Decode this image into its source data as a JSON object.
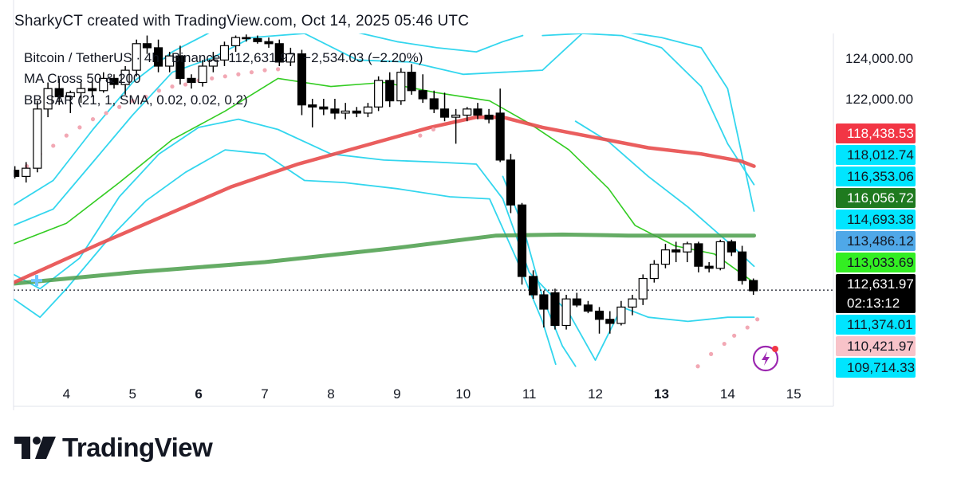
{
  "header": {
    "attribution": "SharkyCT created with TradingView.com, Oct 14, 2025 05:46 UTC"
  },
  "legend": {
    "symbol": "Bitcoin / TetherUS · 4h · Binance",
    "last_close": "112,631.97",
    "change": "−2,534.03 (−2.20%)",
    "ma_indicator": "MA Cross 50 & 200",
    "bb_indicator": "BB SAR (21, 1, SMA, 0.02, 0.02, 0.2)"
  },
  "logo": {
    "text": "TradingView"
  },
  "colors": {
    "ma50": "#e84c4c",
    "ma200": "#4a9e4a",
    "bb_outer": "#33d6ee",
    "bb_middle": "#33cc22",
    "sar": "#f2a8b4",
    "candle_up_fill": "#ffffff",
    "candle_down_fill": "#000000",
    "candle_border": "#000000"
  },
  "chart_data": {
    "type": "candlestick",
    "timeframe": "4h",
    "x_domain": [
      3.2,
      15.6
    ],
    "y_domain": [
      108500,
      125200
    ],
    "y_ticks": [
      {
        "value": 124000,
        "label": "124,000.00"
      },
      {
        "value": 122000,
        "label": "122,000.00"
      }
    ],
    "x_ticks": [
      {
        "value": 4,
        "label": "4",
        "bold": false
      },
      {
        "value": 5,
        "label": "5",
        "bold": false
      },
      {
        "value": 6,
        "label": "6",
        "bold": true
      },
      {
        "value": 7,
        "label": "7",
        "bold": false
      },
      {
        "value": 8,
        "label": "8",
        "bold": false
      },
      {
        "value": 9,
        "label": "9",
        "bold": false
      },
      {
        "value": 10,
        "label": "10",
        "bold": false
      },
      {
        "value": 11,
        "label": "11",
        "bold": false
      },
      {
        "value": 12,
        "label": "12",
        "bold": false
      },
      {
        "value": 13,
        "label": "13",
        "bold": true
      },
      {
        "value": 14,
        "label": "14",
        "bold": false
      },
      {
        "value": 15,
        "label": "15",
        "bold": false
      }
    ],
    "price_tags": [
      {
        "label": "118,438.53",
        "value": 118438.53,
        "bg": "#f23645",
        "color": "#ffffff"
      },
      {
        "label": "118,012.74",
        "value": 118012.74,
        "bg": "#00e5ff",
        "color": "#131722"
      },
      {
        "label": "116,353.06",
        "value": 116353.06,
        "bg": "#00e5ff",
        "color": "#131722"
      },
      {
        "label": "116,056.72",
        "value": 116056.72,
        "bg": "#1f7a1f",
        "color": "#ffffff"
      },
      {
        "label": "114,693.38",
        "value": 114693.38,
        "bg": "#00e5ff",
        "color": "#131722"
      },
      {
        "label": "113,486.12",
        "value": 113486.12,
        "bg": "#4fa8e8",
        "color": "#131722"
      },
      {
        "label": "113,033.69",
        "value": 113033.69,
        "bg": "#33ee22",
        "color": "#131722"
      },
      {
        "label": "112,631.97",
        "value": 112631.97,
        "bg": "#000000",
        "color": "#ffffff",
        "sub": "02:13:12"
      },
      {
        "label": "111,374.01",
        "value": 111374.01,
        "bg": "#00e5ff",
        "color": "#131722"
      },
      {
        "label": "110,421.97",
        "value": 110421.97,
        "bg": "#f8c3c9",
        "color": "#131722"
      },
      {
        "label": "109,714.33",
        "value": 109714.33,
        "bg": "#00e5ff",
        "color": "#131722"
      }
    ],
    "last_price": 112631.97,
    "candles": [
      {
        "t": 3.22,
        "o": 118500,
        "h": 118700,
        "l": 118100,
        "c": 118200
      },
      {
        "t": 3.39,
        "o": 118200,
        "h": 118900,
        "l": 117900,
        "c": 118600
      },
      {
        "t": 3.56,
        "o": 118600,
        "h": 121900,
        "l": 118400,
        "c": 121500
      },
      {
        "t": 3.72,
        "o": 121500,
        "h": 122800,
        "l": 121100,
        "c": 122500
      },
      {
        "t": 3.89,
        "o": 122500,
        "h": 123000,
        "l": 121700,
        "c": 122100
      },
      {
        "t": 4.06,
        "o": 122100,
        "h": 122400,
        "l": 121300,
        "c": 122300
      },
      {
        "t": 4.22,
        "o": 122300,
        "h": 122800,
        "l": 121800,
        "c": 122500
      },
      {
        "t": 4.39,
        "o": 122500,
        "h": 122900,
        "l": 122100,
        "c": 122400
      },
      {
        "t": 4.56,
        "o": 122400,
        "h": 123300,
        "l": 122300,
        "c": 123000
      },
      {
        "t": 4.72,
        "o": 123000,
        "h": 123200,
        "l": 122500,
        "c": 122700
      },
      {
        "t": 4.89,
        "o": 122700,
        "h": 123600,
        "l": 122200,
        "c": 123400
      },
      {
        "t": 5.06,
        "o": 123400,
        "h": 124900,
        "l": 123100,
        "c": 124700
      },
      {
        "t": 5.22,
        "o": 124700,
        "h": 125100,
        "l": 124200,
        "c": 124500
      },
      {
        "t": 5.39,
        "o": 124500,
        "h": 124900,
        "l": 123300,
        "c": 123600
      },
      {
        "t": 5.56,
        "o": 123600,
        "h": 124300,
        "l": 123300,
        "c": 124100
      },
      {
        "t": 5.72,
        "o": 124100,
        "h": 124600,
        "l": 122700,
        "c": 123000
      },
      {
        "t": 5.89,
        "o": 123000,
        "h": 123200,
        "l": 122500,
        "c": 122800
      },
      {
        "t": 6.06,
        "o": 122800,
        "h": 123900,
        "l": 122600,
        "c": 123600
      },
      {
        "t": 6.22,
        "o": 123600,
        "h": 124300,
        "l": 123300,
        "c": 123900
      },
      {
        "t": 6.39,
        "o": 123900,
        "h": 124800,
        "l": 123600,
        "c": 124600
      },
      {
        "t": 6.56,
        "o": 124600,
        "h": 125100,
        "l": 124300,
        "c": 125000
      },
      {
        "t": 6.72,
        "o": 125000,
        "h": 125150,
        "l": 124800,
        "c": 124950
      },
      {
        "t": 6.89,
        "o": 124950,
        "h": 125100,
        "l": 124700,
        "c": 124800
      },
      {
        "t": 7.06,
        "o": 124800,
        "h": 125000,
        "l": 124500,
        "c": 124700
      },
      {
        "t": 7.22,
        "o": 124700,
        "h": 124900,
        "l": 123600,
        "c": 123800
      },
      {
        "t": 7.39,
        "o": 123800,
        "h": 124500,
        "l": 123600,
        "c": 124200
      },
      {
        "t": 7.56,
        "o": 124200,
        "h": 124400,
        "l": 121200,
        "c": 121700
      },
      {
        "t": 7.72,
        "o": 121700,
        "h": 122000,
        "l": 120600,
        "c": 121600
      },
      {
        "t": 7.89,
        "o": 121600,
        "h": 122000,
        "l": 121200,
        "c": 121500
      },
      {
        "t": 8.06,
        "o": 121500,
        "h": 122000,
        "l": 121000,
        "c": 121300
      },
      {
        "t": 8.22,
        "o": 121300,
        "h": 121800,
        "l": 121000,
        "c": 121400
      },
      {
        "t": 8.39,
        "o": 121400,
        "h": 121600,
        "l": 121100,
        "c": 121300
      },
      {
        "t": 8.56,
        "o": 121300,
        "h": 121800,
        "l": 121100,
        "c": 121600
      },
      {
        "t": 8.72,
        "o": 121600,
        "h": 123100,
        "l": 121400,
        "c": 122900
      },
      {
        "t": 8.89,
        "o": 122900,
        "h": 123300,
        "l": 121600,
        "c": 121900
      },
      {
        "t": 9.06,
        "o": 121900,
        "h": 123500,
        "l": 121700,
        "c": 123300
      },
      {
        "t": 9.22,
        "o": 123300,
        "h": 123700,
        "l": 122200,
        "c": 122400
      },
      {
        "t": 9.39,
        "o": 122400,
        "h": 123200,
        "l": 121800,
        "c": 122000
      },
      {
        "t": 9.56,
        "o": 122000,
        "h": 122400,
        "l": 121300,
        "c": 121500
      },
      {
        "t": 9.72,
        "o": 121500,
        "h": 122300,
        "l": 120900,
        "c": 121100
      },
      {
        "t": 9.89,
        "o": 121100,
        "h": 121500,
        "l": 119800,
        "c": 121200
      },
      {
        "t": 10.06,
        "o": 121200,
        "h": 121600,
        "l": 120900,
        "c": 121500
      },
      {
        "t": 10.22,
        "o": 121500,
        "h": 121800,
        "l": 121000,
        "c": 121200
      },
      {
        "t": 10.39,
        "o": 121200,
        "h": 121500,
        "l": 120800,
        "c": 121000
      },
      {
        "t": 10.56,
        "o": 121300,
        "h": 122500,
        "l": 118900,
        "c": 119000
      },
      {
        "t": 10.72,
        "o": 119000,
        "h": 119300,
        "l": 116400,
        "c": 116800
      },
      {
        "t": 10.89,
        "o": 116800,
        "h": 116900,
        "l": 112900,
        "c": 113300
      },
      {
        "t": 11.06,
        "o": 113300,
        "h": 113600,
        "l": 112200,
        "c": 112400
      },
      {
        "t": 11.22,
        "o": 112400,
        "h": 112600,
        "l": 110800,
        "c": 111700
      },
      {
        "t": 11.39,
        "o": 112500,
        "h": 112700,
        "l": 110700,
        "c": 110900
      },
      {
        "t": 11.56,
        "o": 110900,
        "h": 112400,
        "l": 110700,
        "c": 112200
      },
      {
        "t": 11.72,
        "o": 112200,
        "h": 112500,
        "l": 111800,
        "c": 111900
      },
      {
        "t": 11.89,
        "o": 111900,
        "h": 112100,
        "l": 111500,
        "c": 111600
      },
      {
        "t": 12.06,
        "o": 111600,
        "h": 111800,
        "l": 110500,
        "c": 111200
      },
      {
        "t": 12.22,
        "o": 111200,
        "h": 111600,
        "l": 110500,
        "c": 111000
      },
      {
        "t": 12.39,
        "o": 111000,
        "h": 112100,
        "l": 110900,
        "c": 111800
      },
      {
        "t": 12.56,
        "o": 111800,
        "h": 112400,
        "l": 111400,
        "c": 112200
      },
      {
        "t": 12.72,
        "o": 112200,
        "h": 113400,
        "l": 111900,
        "c": 113200
      },
      {
        "t": 12.89,
        "o": 113200,
        "h": 114100,
        "l": 113000,
        "c": 113900
      },
      {
        "t": 13.06,
        "o": 113900,
        "h": 114900,
        "l": 113700,
        "c": 114600
      },
      {
        "t": 13.22,
        "o": 114600,
        "h": 115000,
        "l": 114000,
        "c": 114500
      },
      {
        "t": 13.39,
        "o": 114500,
        "h": 115000,
        "l": 114000,
        "c": 114900
      },
      {
        "t": 13.56,
        "o": 114900,
        "h": 115000,
        "l": 113500,
        "c": 113800
      },
      {
        "t": 13.72,
        "o": 113800,
        "h": 114000,
        "l": 113500,
        "c": 113700
      },
      {
        "t": 13.89,
        "o": 113700,
        "h": 115100,
        "l": 113600,
        "c": 115000
      },
      {
        "t": 14.06,
        "o": 115000,
        "h": 115100,
        "l": 114300,
        "c": 114500
      },
      {
        "t": 14.22,
        "o": 114500,
        "h": 114800,
        "l": 112900,
        "c": 113100
      },
      {
        "t": 14.39,
        "o": 113100,
        "h": 113200,
        "l": 112400,
        "c": 112600
      }
    ],
    "ma50": [
      [
        3.2,
        113000
      ],
      [
        4.5,
        114900
      ],
      [
        5.5,
        116300
      ],
      [
        6.5,
        117700
      ],
      [
        7.5,
        118800
      ],
      [
        8.5,
        119700
      ],
      [
        9.5,
        120600
      ],
      [
        10.2,
        121100
      ],
      [
        10.6,
        121100
      ],
      [
        11.2,
        120600
      ],
      [
        12.0,
        120100
      ],
      [
        12.8,
        119600
      ],
      [
        13.6,
        119300
      ],
      [
        14.2,
        118950
      ],
      [
        14.4,
        118700
      ]
    ],
    "ma200": [
      [
        3.2,
        112950
      ],
      [
        5.0,
        113500
      ],
      [
        7.0,
        114000
      ],
      [
        9.0,
        114700
      ],
      [
        10.5,
        115300
      ],
      [
        11.5,
        115350
      ],
      [
        12.5,
        115300
      ],
      [
        13.5,
        115300
      ],
      [
        14.4,
        115300
      ]
    ],
    "bb_upper": [
      [
        3.2,
        115800
      ],
      [
        3.8,
        116600
      ],
      [
        4.4,
        118900
      ],
      [
        5.0,
        121200
      ],
      [
        5.6,
        123300
      ],
      [
        6.2,
        124000
      ],
      [
        6.8,
        125000
      ],
      [
        7.6,
        125200
      ],
      [
        8.4,
        123900
      ],
      [
        9.2,
        123800
      ],
      [
        10.0,
        123200
      ],
      [
        10.6,
        123300
      ],
      [
        11.2,
        123400
      ],
      [
        11.8,
        125200
      ],
      [
        12.4,
        125300
      ],
      [
        13.0,
        125000
      ],
      [
        13.6,
        124500
      ],
      [
        14.0,
        122500
      ],
      [
        14.4,
        116500
      ]
    ],
    "bb_middle": [
      [
        3.2,
        114900
      ],
      [
        4.0,
        115900
      ],
      [
        4.8,
        117900
      ],
      [
        5.6,
        120000
      ],
      [
        6.4,
        121400
      ],
      [
        7.2,
        123000
      ],
      [
        8.0,
        122600
      ],
      [
        8.8,
        122800
      ],
      [
        9.6,
        122300
      ],
      [
        10.4,
        121900
      ],
      [
        11.0,
        120800
      ],
      [
        11.6,
        119500
      ],
      [
        12.2,
        117600
      ],
      [
        12.6,
        115800
      ],
      [
        13.2,
        114800
      ],
      [
        13.8,
        114400
      ],
      [
        14.4,
        113000
      ]
    ],
    "bb_lower": [
      [
        3.2,
        113400
      ],
      [
        3.6,
        112700
      ],
      [
        4.2,
        114200
      ],
      [
        4.8,
        117200
      ],
      [
        5.4,
        119300
      ],
      [
        6.0,
        120600
      ],
      [
        6.6,
        121000
      ],
      [
        7.2,
        120500
      ],
      [
        8.0,
        119300
      ],
      [
        8.8,
        119000
      ],
      [
        9.6,
        118900
      ],
      [
        10.2,
        118800
      ],
      [
        10.6,
        117100
      ],
      [
        11.0,
        113500
      ],
      [
        11.6,
        111500
      ],
      [
        12.0,
        109200
      ],
      [
        12.4,
        111800
      ],
      [
        12.8,
        111300
      ],
      [
        13.4,
        111100
      ],
      [
        14.0,
        111300
      ],
      [
        14.4,
        111300
      ]
    ],
    "bb_outer_upper": [
      [
        3.2,
        116800
      ],
      [
        3.8,
        118000
      ],
      [
        4.4,
        120500
      ],
      [
        5.0,
        122800
      ],
      [
        5.6,
        124300
      ],
      [
        6.2,
        125300
      ],
      [
        6.8,
        125600
      ],
      [
        7.4,
        125600
      ],
      [
        8.2,
        125400
      ],
      [
        9.0,
        124800
      ],
      [
        9.6,
        124500
      ],
      [
        10.2,
        124300
      ],
      [
        10.6,
        124800
      ],
      [
        10.9,
        125100
      ]
    ],
    "bb_outer_lower": [
      [
        3.2,
        112200
      ],
      [
        3.6,
        111300
      ],
      [
        4.0,
        112700
      ],
      [
        4.6,
        115000
      ],
      [
        5.2,
        117000
      ],
      [
        5.8,
        118400
      ],
      [
        6.4,
        119500
      ],
      [
        7.0,
        119300
      ],
      [
        7.6,
        118000
      ],
      [
        8.2,
        117900
      ],
      [
        9.0,
        117600
      ],
      [
        9.8,
        117200
      ],
      [
        10.4,
        117100
      ],
      [
        10.8,
        114200
      ],
      [
        11.2,
        111100
      ],
      [
        11.4,
        109000
      ]
    ],
    "bb_outer_right_upper": [
      [
        11.2,
        125100
      ],
      [
        11.8,
        125200
      ],
      [
        12.4,
        125100
      ],
      [
        13.0,
        124500
      ],
      [
        13.6,
        122600
      ],
      [
        14.0,
        119800
      ],
      [
        14.4,
        117800
      ]
    ],
    "bb_outer_right_lower": [
      [
        11.7,
        120900
      ],
      [
        12.2,
        119900
      ],
      [
        12.8,
        118200
      ],
      [
        13.4,
        116700
      ],
      [
        14.0,
        115000
      ],
      [
        14.4,
        113800
      ]
    ],
    "bb_inner_left_lower": [
      [
        10.6,
        118200
      ],
      [
        10.9,
        115800
      ],
      [
        11.2,
        112300
      ],
      [
        11.5,
        109900
      ],
      [
        11.7,
        108900
      ]
    ],
    "sar": [
      [
        3.2,
        118400
      ],
      [
        3.4,
        118700
      ],
      [
        3.6,
        119300
      ],
      [
        3.8,
        119700
      ],
      [
        4.0,
        120200
      ],
      [
        4.2,
        120600
      ],
      [
        4.4,
        121000
      ],
      [
        4.6,
        121300
      ],
      [
        4.8,
        121600
      ],
      [
        5.0,
        121900
      ],
      [
        5.2,
        122100
      ],
      [
        5.4,
        122400
      ],
      [
        5.6,
        122600
      ],
      [
        5.8,
        122700
      ],
      [
        6.0,
        122900
      ],
      [
        6.2,
        123000
      ],
      [
        6.4,
        123100
      ],
      [
        6.6,
        123200
      ],
      [
        6.8,
        123300
      ],
      [
        7.0,
        123400
      ],
      [
        7.2,
        123450
      ],
      [
        9.35,
        120200
      ],
      [
        9.55,
        120500
      ],
      [
        13.55,
        108900
      ],
      [
        13.75,
        109500
      ],
      [
        13.95,
        110000
      ],
      [
        14.1,
        110400
      ],
      [
        14.3,
        110800
      ],
      [
        14.45,
        111200
      ]
    ]
  }
}
